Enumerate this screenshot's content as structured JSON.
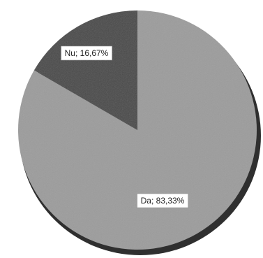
{
  "chart_data": {
    "type": "pie",
    "categories": [
      "Nu",
      "Da"
    ],
    "values": [
      16.67,
      83.33
    ],
    "data_labels": [
      "Nu; 16,67%",
      "Da; 83,33%"
    ],
    "colors": [
      "#4a4a4a",
      "#9c9c9c"
    ],
    "start": "top (12 o'clock)",
    "direction": "counterclockwise",
    "legend": "none",
    "grid": false
  }
}
